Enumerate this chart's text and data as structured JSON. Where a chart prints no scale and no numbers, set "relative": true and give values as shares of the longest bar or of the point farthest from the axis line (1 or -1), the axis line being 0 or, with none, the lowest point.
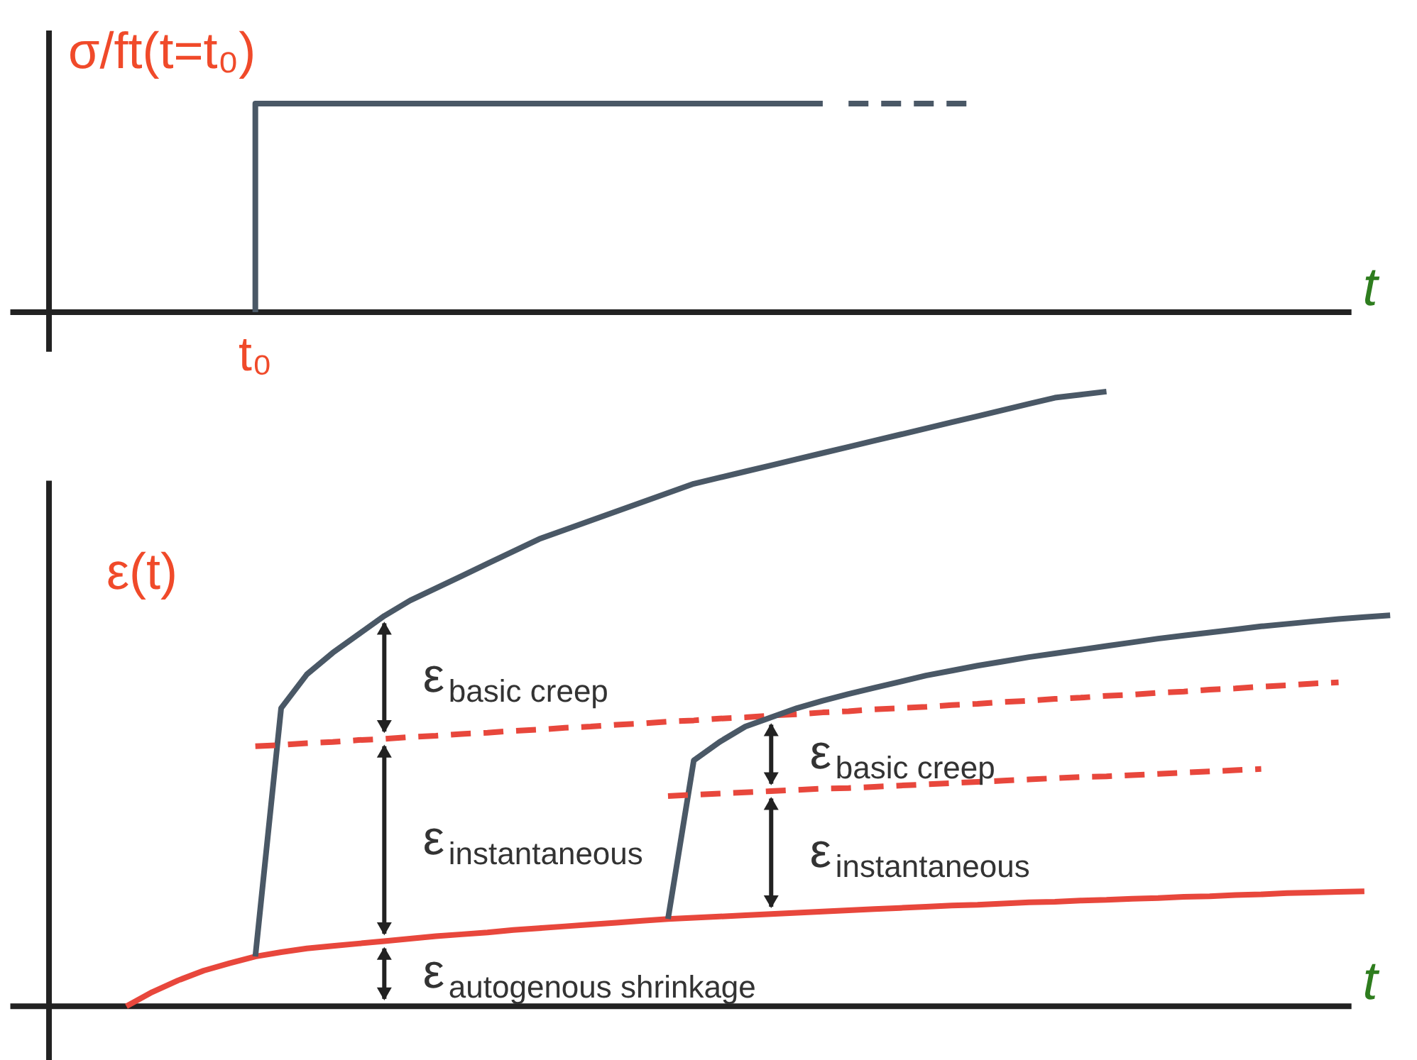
{
  "chart_data": [
    {
      "type": "line",
      "relative": true,
      "tick_labels": false,
      "ylabel": "σ/ft(t=t₀)",
      "xlabel": "t",
      "annotations": [
        "t₀"
      ],
      "categories": [
        null,
        null,
        null,
        null,
        null,
        null,
        null,
        null,
        null,
        null,
        null,
        null,
        null,
        null,
        null,
        null,
        null,
        null,
        null,
        null,
        null,
        null,
        null,
        null,
        null,
        null,
        null,
        null,
        null,
        null,
        null,
        null,
        null,
        null,
        null,
        null,
        null,
        null,
        null,
        null,
        null,
        null,
        null,
        null,
        null,
        null,
        null,
        null,
        null,
        null,
        null,
        null,
        null
      ],
      "series": [
        {
          "type": "step",
          "color": "#4a5866",
          "line_style": "solid",
          "values": [
            null,
            null,
            null,
            null,
            null,
            null,
            null,
            null,
            0,
            1,
            1,
            1,
            1,
            1,
            1,
            1,
            1,
            1,
            1,
            1,
            1,
            1,
            1,
            1,
            1,
            1,
            1,
            1,
            1,
            1,
            1,
            null,
            null,
            null,
            null,
            null,
            null,
            null,
            null,
            null,
            null,
            null,
            null,
            null,
            null,
            null,
            null,
            null,
            null,
            null,
            null,
            null,
            null
          ]
        },
        {
          "type": "line",
          "color": "#4a5866",
          "line_style": "dashed",
          "values": [
            null,
            null,
            null,
            null,
            null,
            null,
            null,
            null,
            null,
            null,
            null,
            null,
            null,
            null,
            null,
            null,
            null,
            null,
            null,
            null,
            null,
            null,
            null,
            null,
            null,
            null,
            null,
            null,
            null,
            null,
            null,
            1,
            1,
            1,
            1,
            1,
            1,
            null,
            null,
            null,
            null,
            null,
            null,
            null,
            null,
            null,
            null,
            null,
            null,
            null,
            null,
            null,
            null
          ]
        }
      ]
    },
    {
      "type": "line",
      "relative": true,
      "tick_labels": false,
      "ylabel": "ε(t)",
      "xlabel": "t",
      "annotations": [
        "ε$_{basic creep}$",
        "ε$_{basic creep}$",
        "ε$_{instantaneous}$",
        "ε$_{instantaneous}$",
        "ε$_{autogenous shrinkage}$"
      ],
      "categories": [
        null,
        null,
        null,
        null,
        null,
        null,
        null,
        null,
        null,
        null,
        null,
        null,
        null,
        null,
        null,
        null,
        null,
        null,
        null,
        null,
        null,
        null,
        null,
        null,
        null,
        null,
        null,
        null,
        null,
        null,
        null,
        null,
        null,
        null,
        null,
        null,
        null,
        null,
        null,
        null,
        null,
        null,
        null,
        null,
        null,
        null,
        null,
        null,
        null,
        null,
        null,
        null,
        null
      ],
      "series": [
        {
          "type": "line",
          "color": "#e8473c",
          "line_style": "solid",
          "values": [
            null,
            null,
            null,
            0,
            0.023,
            0.042,
            0.058,
            0.07,
            0.081,
            0.088,
            0.094,
            0.098,
            0.102,
            0.106,
            0.11,
            0.114,
            0.117,
            0.12,
            0.124,
            0.127,
            0.13,
            0.133,
            0.136,
            0.139,
            0.142,
            0.144,
            0.146,
            0.148,
            0.15,
            0.152,
            0.154,
            0.156,
            0.158,
            0.16,
            0.162,
            0.164,
            0.165,
            0.167,
            0.169,
            0.17,
            0.172,
            0.173,
            0.175,
            0.176,
            0.178,
            0.179,
            0.181,
            0.182,
            0.184,
            0.185,
            0.186,
            0.187,
            null
          ]
        },
        {
          "type": "line",
          "color": "#4a5866",
          "line_style": "solid",
          "values": [
            null,
            null,
            null,
            null,
            null,
            null,
            null,
            null,
            0.081,
            0.485,
            0.54,
            0.575,
            0.605,
            0.635,
            0.66,
            0.68,
            0.7,
            0.72,
            0.74,
            0.76,
            0.775,
            0.79,
            0.805,
            0.82,
            0.835,
            0.85,
            0.86,
            0.87,
            0.88,
            0.89,
            0.9,
            0.91,
            0.92,
            0.93,
            0.94,
            0.95,
            0.96,
            0.97,
            0.98,
            0.99,
            0.995,
            1.0,
            null,
            null,
            null,
            null,
            null,
            null,
            null,
            null,
            null,
            null,
            null
          ]
        },
        {
          "type": "line",
          "color": "#e8473c",
          "line_style": "dashed",
          "values": [
            null,
            null,
            null,
            null,
            null,
            null,
            null,
            null,
            0.423,
            0.425,
            0.428,
            0.43,
            0.433,
            0.435,
            0.438,
            0.44,
            0.443,
            0.445,
            0.448,
            0.45,
            0.453,
            0.455,
            0.458,
            0.46,
            0.463,
            0.465,
            0.468,
            0.47,
            0.473,
            0.475,
            0.478,
            0.48,
            0.483,
            0.485,
            0.487,
            0.49,
            0.492,
            0.495,
            0.497,
            0.5,
            0.502,
            0.505,
            0.507,
            0.51,
            0.512,
            0.515,
            0.517,
            0.52,
            0.522,
            0.525,
            0.527,
            null,
            null
          ]
        },
        {
          "type": "line",
          "color": "#4a5866",
          "line_style": "solid",
          "values": [
            null,
            null,
            null,
            null,
            null,
            null,
            null,
            null,
            null,
            null,
            null,
            null,
            null,
            null,
            null,
            null,
            null,
            null,
            null,
            null,
            null,
            null,
            null,
            null,
            0.142,
            0.4,
            0.43,
            0.455,
            0.47,
            0.485,
            0.497,
            0.508,
            0.518,
            0.528,
            0.538,
            0.546,
            0.554,
            0.561,
            0.568,
            0.574,
            0.58,
            0.586,
            0.592,
            0.598,
            0.603,
            0.608,
            0.613,
            0.618,
            0.622,
            0.626,
            0.63,
            0.633,
            0.636
          ]
        },
        {
          "type": "line",
          "color": "#e8473c",
          "line_style": "dashed",
          "values": [
            null,
            null,
            null,
            null,
            null,
            null,
            null,
            null,
            null,
            null,
            null,
            null,
            null,
            null,
            null,
            null,
            null,
            null,
            null,
            null,
            null,
            null,
            null,
            null,
            0.342,
            0.344,
            0.346,
            0.348,
            0.35,
            0.352,
            0.354,
            0.355,
            0.357,
            0.359,
            0.361,
            0.363,
            0.365,
            0.367,
            0.369,
            0.371,
            0.373,
            0.374,
            0.376,
            0.378,
            0.38,
            0.382,
            0.384,
            0.386,
            null,
            null,
            null,
            null,
            null
          ]
        }
      ]
    }
  ]
}
